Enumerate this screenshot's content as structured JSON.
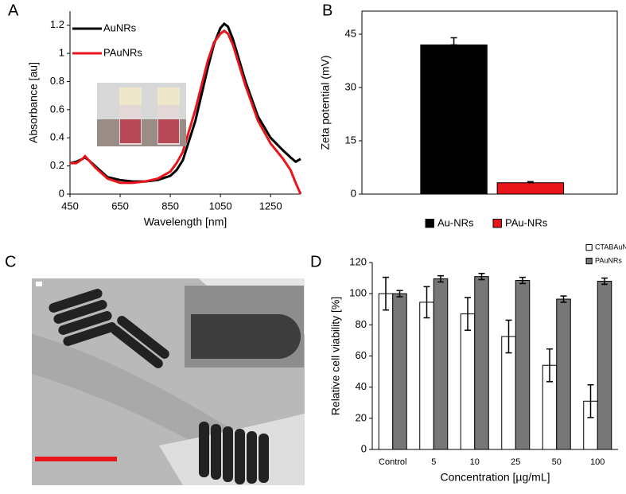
{
  "chart_data": [
    {
      "type": "line",
      "panel": "A",
      "xlabel": "Wavelength [nm]",
      "ylabel": "Absorbance [au]",
      "x": [
        450,
        475,
        500,
        510,
        525,
        550,
        600,
        650,
        700,
        750,
        800,
        850,
        875,
        900,
        950,
        1000,
        1025,
        1050,
        1065,
        1080,
        1100,
        1150,
        1200,
        1250,
        1300,
        1330,
        1350,
        1370
      ],
      "series": [
        {
          "name": "AuNRs",
          "color": "#000000",
          "values": [
            0.22,
            0.23,
            0.25,
            0.26,
            0.24,
            0.2,
            0.12,
            0.1,
            0.09,
            0.09,
            0.1,
            0.13,
            0.17,
            0.24,
            0.52,
            0.9,
            1.07,
            1.18,
            1.21,
            1.19,
            1.1,
            0.8,
            0.55,
            0.4,
            0.31,
            0.26,
            0.23,
            0.25
          ]
        },
        {
          "name": "PAuNRs",
          "color": "#e8161b",
          "values": [
            0.22,
            0.22,
            0.25,
            0.27,
            0.24,
            0.19,
            0.11,
            0.08,
            0.08,
            0.09,
            0.11,
            0.16,
            0.22,
            0.3,
            0.6,
            0.95,
            1.08,
            1.14,
            1.16,
            1.14,
            1.06,
            0.77,
            0.52,
            0.36,
            0.25,
            0.17,
            0.08,
            0.0
          ]
        }
      ],
      "xlim": [
        450,
        1370
      ],
      "xticks": [
        450,
        650,
        850,
        1050,
        1250
      ],
      "ylim": [
        0,
        1.3
      ],
      "yticks": [
        0,
        0.2,
        0.4,
        0.6,
        0.8,
        1,
        1.2
      ],
      "legend": "upper-left"
    },
    {
      "type": "bar",
      "panel": "B",
      "ylabel": "Zeta potential (mV)",
      "series": [
        {
          "name": "Au-NRs",
          "color": "#000000",
          "values": [
            42
          ],
          "errors": [
            2
          ]
        },
        {
          "name": "PAu-NRs",
          "color": "#e8161b",
          "values": [
            3.2
          ],
          "errors": [
            0.3
          ]
        }
      ],
      "ylim": [
        0,
        51.5
      ],
      "yticks": [
        0,
        15,
        30,
        45
      ],
      "legend": "bottom"
    },
    {
      "type": "image",
      "panel": "C"
    },
    {
      "type": "bar",
      "panel": "D",
      "xlabel": "Concentration [µg/mL]",
      "ylabel": "Relative cell viability [%]",
      "categories": [
        "Control",
        "5",
        "10",
        "25",
        "50",
        "100"
      ],
      "series": [
        {
          "name": "CTABAuNRs",
          "color": "#ffffff",
          "values": [
            100,
            94.5,
            87,
            72.5,
            54,
            31
          ],
          "errors": [
            10.5,
            10,
            10.5,
            10.5,
            10.5,
            10.5
          ]
        },
        {
          "name": "PAuNRs",
          "color": "#777777",
          "values": [
            100,
            109.5,
            111,
            108.5,
            96.5,
            108
          ],
          "errors": [
            2,
            2,
            2,
            2,
            2,
            2
          ]
        }
      ],
      "ylim": [
        0,
        120
      ],
      "yticks": [
        0,
        20,
        40,
        60,
        80,
        100,
        120
      ],
      "legend": "upper-right"
    }
  ]
}
